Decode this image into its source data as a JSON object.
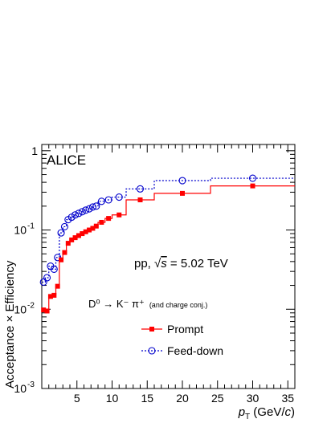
{
  "chart_data": {
    "type": "line",
    "experiment_label": "ALICE",
    "system_label": {
      "prefix": "pp, ",
      "sqrt": "√",
      "s": "s",
      "rest": " = 5.02 TeV"
    },
    "decay_label": {
      "main": "D⁰ → K⁻ π⁺",
      "suffix": "(and charge conj.)"
    },
    "ylabel": "Acceptance × Efficiency",
    "xlabel": {
      "p": "p",
      "sub": "T",
      "unit_open": " (GeV/",
      "unit_c": "c",
      "unit_close": ")"
    },
    "xlim": [
      0,
      36
    ],
    "ylim": [
      0.001,
      1.2
    ],
    "yscale": "log",
    "x_tick_labels": [
      "5",
      "10",
      "15",
      "20",
      "25",
      "30",
      "35"
    ],
    "y_tick_labels": [
      "10",
      "10",
      "10",
      "1"
    ],
    "y_tick_exponents": [
      "-3",
      "-2",
      "-1",
      ""
    ],
    "legend": {
      "placement": "center-bottom",
      "entries": [
        "Prompt",
        "Feed-down"
      ]
    },
    "colors": {
      "prompt": "#ff0000",
      "feeddown": "#0000cc"
    },
    "bin_edges": [
      0,
      0.5,
      1,
      1.5,
      2,
      2.5,
      3,
      3.5,
      4,
      4.5,
      5,
      5.5,
      6,
      6.5,
      7,
      7.5,
      8,
      9,
      10,
      12,
      16,
      24,
      36
    ],
    "series": [
      {
        "name": "Prompt",
        "marker": "filled-square",
        "values": [
          0.0098,
          0.0095,
          0.0145,
          0.015,
          0.0195,
          0.042,
          0.052,
          0.068,
          0.075,
          0.08,
          0.085,
          0.09,
          0.095,
          0.1,
          0.105,
          0.112,
          0.125,
          0.14,
          0.155,
          0.24,
          0.29,
          0.36
        ]
      },
      {
        "name": "Feed-down",
        "marker": "open-circle",
        "values": [
          0.022,
          0.025,
          0.035,
          0.032,
          0.045,
          0.092,
          0.11,
          0.135,
          0.145,
          0.155,
          0.162,
          0.17,
          0.178,
          0.185,
          0.195,
          0.2,
          0.23,
          0.24,
          0.26,
          0.33,
          0.42,
          0.45
        ]
      }
    ]
  }
}
